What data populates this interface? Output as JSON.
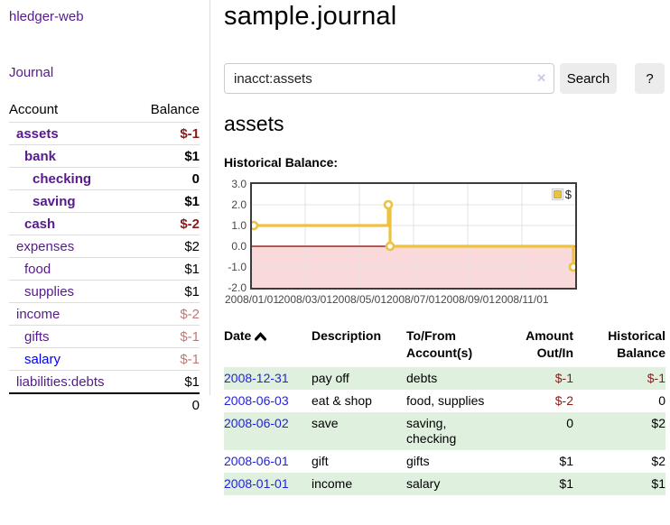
{
  "app": {
    "brand": "hledger-web",
    "journal_link": "Journal"
  },
  "sidebar": {
    "headers": {
      "account": "Account",
      "balance": "Balance"
    },
    "accounts": [
      {
        "name": "assets",
        "level": 1,
        "bold": true,
        "balance": "$-1",
        "balance_class": "neg-strong"
      },
      {
        "name": "bank",
        "level": 2,
        "bold": true,
        "balance": "$1",
        "balance_class": ""
      },
      {
        "name": "checking",
        "level": 3,
        "bold": true,
        "balance": "0",
        "balance_class": ""
      },
      {
        "name": "saving",
        "level": 3,
        "bold": true,
        "balance": "$1",
        "balance_class": ""
      },
      {
        "name": "cash",
        "level": 2,
        "bold": true,
        "balance": "$-2",
        "balance_class": "neg-strong"
      },
      {
        "name": "expenses",
        "level": 1,
        "bold": false,
        "balance": "$2",
        "balance_class": ""
      },
      {
        "name": "food",
        "level": 2,
        "bold": false,
        "balance": "$1",
        "balance_class": ""
      },
      {
        "name": "supplies",
        "level": 2,
        "bold": false,
        "balance": "$1",
        "balance_class": ""
      },
      {
        "name": "income",
        "level": 1,
        "bold": false,
        "balance": "$-2",
        "balance_class": "neg-soft"
      },
      {
        "name": "gifts",
        "level": 2,
        "bold": false,
        "balance": "$-1",
        "balance_class": "neg-soft"
      },
      {
        "name": "salary",
        "level": 2,
        "bold": false,
        "balance": "$-1",
        "balance_class": "neg-soft",
        "unvisited": true
      },
      {
        "name": "liabilities:debts",
        "level": 1,
        "bold": false,
        "balance": "$1",
        "balance_class": ""
      }
    ],
    "total": "0"
  },
  "header": {
    "title": "sample.journal"
  },
  "search": {
    "value": "inacct:assets",
    "clear_icon": "✕",
    "button_label": "Search",
    "help_label": "?"
  },
  "page": {
    "account_title": "assets",
    "chart_label": "Historical Balance:"
  },
  "chart_data": {
    "type": "line",
    "style": "step",
    "title": "Historical Balance",
    "series": [
      {
        "name": "$",
        "points": [
          [
            "2008-01-01",
            1
          ],
          [
            "2008-06-01",
            2
          ],
          [
            "2008-06-02",
            2
          ],
          [
            "2008-06-03",
            0
          ],
          [
            "2008-12-31",
            -1
          ]
        ]
      }
    ],
    "ylim": [
      -2.0,
      3.0
    ],
    "yticks": [
      "3.0",
      "2.0",
      "1.0",
      "0.0",
      "-1.0",
      "-2.0"
    ],
    "xticks": [
      "2008/01/01",
      "2008/03/01",
      "2008/05/01",
      "2008/07/01",
      "2008/09/01",
      "2008/11/01"
    ],
    "legend": {
      "label": "$",
      "position": "top-right"
    },
    "grid": true,
    "negative_region_shaded": true
  },
  "register": {
    "headers": {
      "date": "Date",
      "description": "Description",
      "accounts": "To/From Account(s)",
      "amount": "Amount Out/In",
      "balance": "Historical Balance"
    },
    "rows": [
      {
        "date": "2008-12-31",
        "description": "pay off",
        "accounts": "debts",
        "amount": "$-1",
        "amount_negative": true,
        "balance": "$-1",
        "balance_negative": true,
        "shaded": true
      },
      {
        "date": "2008-06-03",
        "description": "eat & shop",
        "accounts": "food, supplies",
        "amount": "$-2",
        "amount_negative": true,
        "balance": "0",
        "balance_negative": false,
        "shaded": false
      },
      {
        "date": "2008-06-02",
        "description": "save",
        "accounts": "saving, checking",
        "amount": "0",
        "amount_negative": false,
        "balance": "$2",
        "balance_negative": false,
        "shaded": true
      },
      {
        "date": "2008-06-01",
        "description": "gift",
        "accounts": "gifts",
        "amount": "$1",
        "amount_negative": false,
        "balance": "$2",
        "balance_negative": false,
        "shaded": false
      },
      {
        "date": "2008-01-01",
        "description": "income",
        "accounts": "salary",
        "amount": "$1",
        "amount_negative": false,
        "balance": "$1",
        "balance_negative": false,
        "shaded": true
      }
    ]
  },
  "colors": {
    "accent_purple": "#551a8b",
    "link_blue": "#2222dd",
    "negative_strong": "#8b1a1a",
    "negative_soft": "#c27878",
    "row_green": "#dff0df",
    "chart_line": "#edc240",
    "chart_negative_fill": "#f9d9d9",
    "zero_line": "#8b0000",
    "chart_border": "#3c3c3c"
  }
}
